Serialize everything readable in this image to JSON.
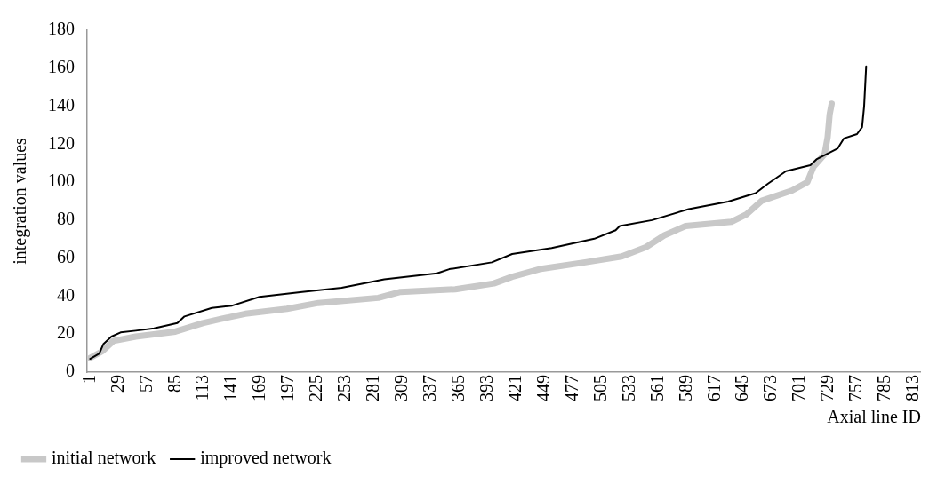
{
  "chart_data": {
    "type": "line",
    "xlabel": "Axial line ID",
    "ylabel": "integration values",
    "xlim": [
      -2,
      820
    ],
    "xticks": [
      1,
      29,
      57,
      85,
      113,
      141,
      169,
      197,
      225,
      253,
      281,
      309,
      337,
      365,
      393,
      421,
      449,
      477,
      505,
      533,
      561,
      589,
      617,
      645,
      673,
      701,
      729,
      757,
      785,
      813
    ],
    "ylim": [
      0,
      180
    ],
    "yticks": [
      0,
      20,
      40,
      60,
      80,
      100,
      120,
      140,
      160,
      180
    ],
    "grid": false,
    "legend": "bottom left",
    "marker": "none",
    "series": [
      {
        "name": "initial network",
        "color": "#c8c8c8",
        "x": [
          1,
          13,
          24,
          46,
          85,
          112,
          130,
          154,
          195,
          226,
          285,
          307,
          361,
          399,
          417,
          444,
          489,
          525,
          549,
          567,
          588,
          633,
          648,
          663,
          693,
          708,
          714,
          725,
          728,
          730,
          732
        ],
        "values": [
          7.5,
          11,
          16.4,
          18.7,
          21.3,
          25.8,
          28,
          30.7,
          33.3,
          36.4,
          39.1,
          42.2,
          43.6,
          46.7,
          50.2,
          54.2,
          57.8,
          60.9,
          65.8,
          72,
          76.9,
          79.1,
          83.1,
          90.2,
          95.6,
          100,
          108,
          114.7,
          123.6,
          135.6,
          141.3
        ]
      },
      {
        "name": "improved network",
        "color": "#000000",
        "x": [
          1,
          10,
          14,
          22,
          31,
          46,
          64,
          87,
          94,
          121,
          141,
          168,
          210,
          249,
          291,
          343,
          355,
          397,
          417,
          456,
          498,
          519,
          523,
          555,
          591,
          630,
          657,
          669,
          687,
          711,
          717,
          738,
          744,
          757,
          762,
          764,
          766
        ],
        "values": [
          7,
          9.8,
          14.7,
          18.7,
          20.9,
          21.8,
          23,
          25.8,
          29.3,
          33.8,
          35,
          39.6,
          42.2,
          44.4,
          48.9,
          52,
          54.2,
          57.8,
          62.2,
          65.3,
          70.2,
          74.7,
          76.9,
          80,
          85.8,
          89.8,
          94.2,
          99.1,
          105.8,
          108.9,
          112,
          117.8,
          123,
          125.3,
          129,
          140,
          160.9
        ]
      }
    ]
  }
}
